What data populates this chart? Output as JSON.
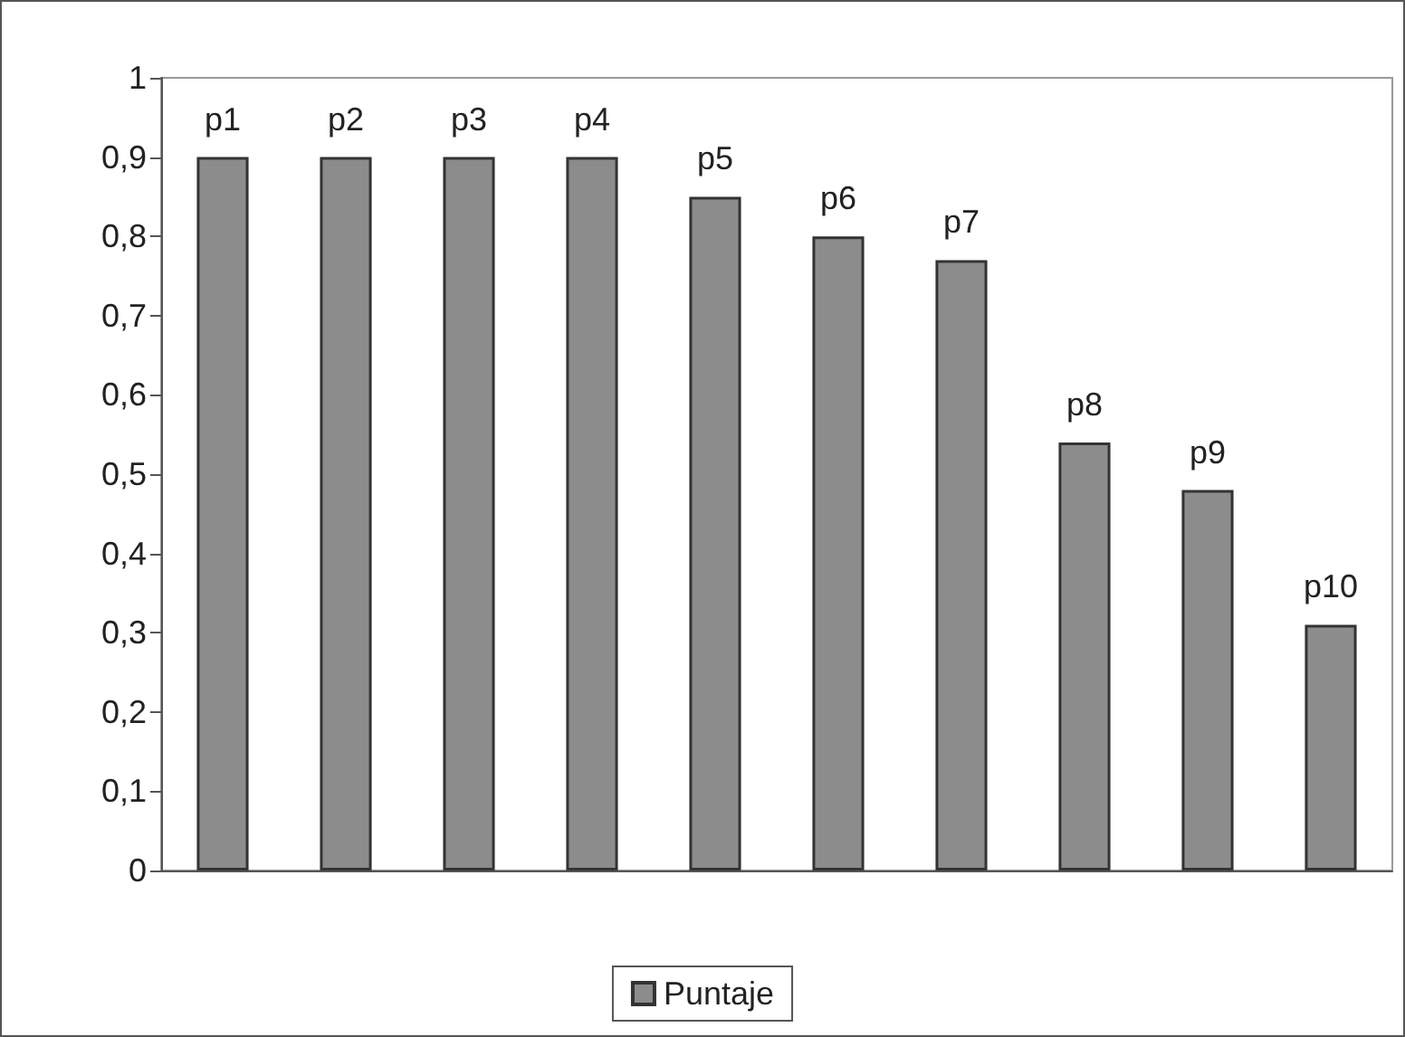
{
  "chart_data": {
    "type": "bar",
    "categories": [
      "p1",
      "p2",
      "p3",
      "p4",
      "p5",
      "p6",
      "p7",
      "p8",
      "p9",
      "p10"
    ],
    "series": [
      {
        "name": "Puntaje",
        "color": "#8c8c8c",
        "values": [
          0.9,
          0.9,
          0.9,
          0.9,
          0.85,
          0.8,
          0.77,
          0.54,
          0.48,
          0.31
        ]
      }
    ],
    "ylim": [
      0,
      1
    ],
    "yticks": [
      0,
      {
        "value": 0.1,
        "label": "0,1"
      },
      {
        "value": 0.2,
        "label": "0,2"
      },
      {
        "value": 0.3,
        "label": "0,3"
      },
      {
        "value": 0.4,
        "label": "0,4"
      },
      {
        "value": 0.5,
        "label": "0,5"
      },
      {
        "value": 0.6,
        "label": "0,6"
      },
      {
        "value": 0.7,
        "label": "0,7"
      },
      {
        "value": 0.8,
        "label": "0,8"
      },
      {
        "value": 0.9,
        "label": "0,9"
      },
      1
    ],
    "grid": false,
    "legend": "bottom"
  }
}
